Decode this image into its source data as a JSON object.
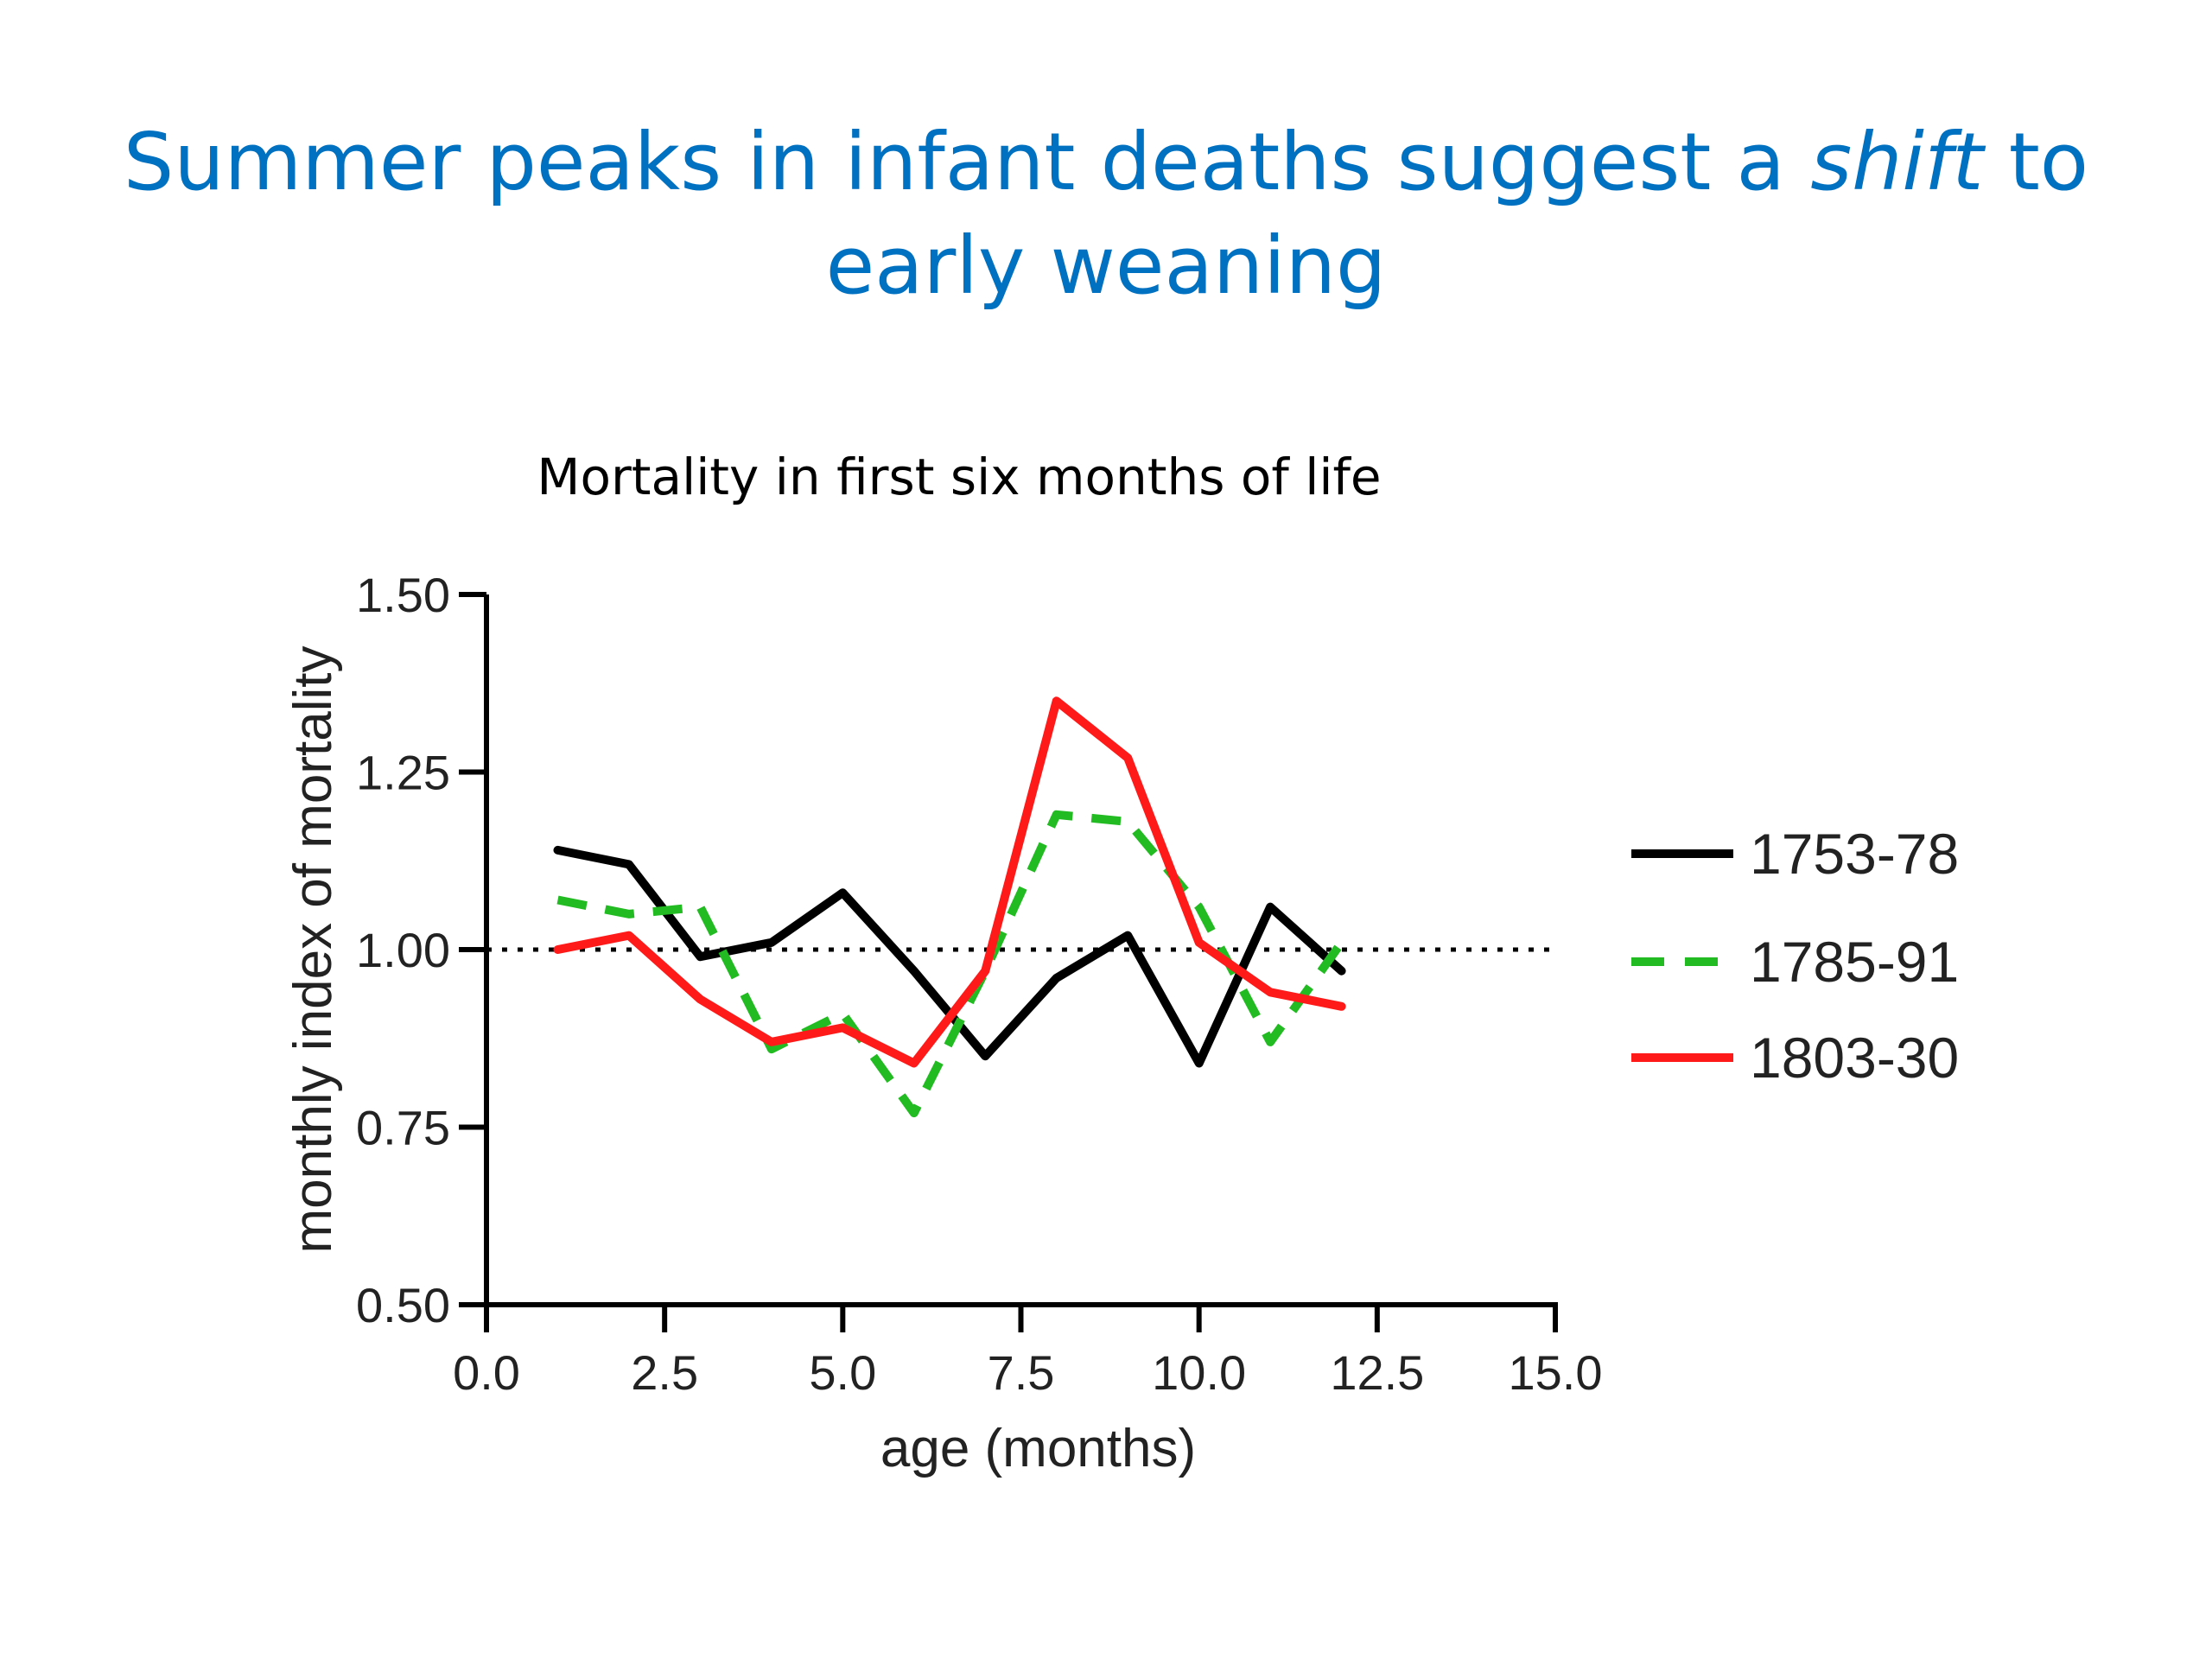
{
  "slide": {
    "title_before": "Summer peaks in infant deaths suggest a ",
    "title_emph": "shift",
    "title_after": " to early weaning"
  },
  "chart_data": {
    "type": "line",
    "title": "Mortality in first six months of life",
    "xlabel": "age (months)",
    "ylabel": "monthly index of mortality",
    "xlim": [
      0,
      15
    ],
    "ylim": [
      0.5,
      1.5
    ],
    "x_ticks": [
      "0.0",
      "2.5",
      "5.0",
      "7.5",
      "10.0",
      "12.5",
      "15.0"
    ],
    "y_ticks": [
      "0.50",
      "0.75",
      "1.00",
      "1.25",
      "1.50"
    ],
    "reference_line": 1.0,
    "legend_position": "right",
    "grid": false,
    "x": [
      1,
      2,
      3,
      4,
      5,
      6,
      7,
      8,
      9,
      10,
      11,
      12
    ],
    "series": [
      {
        "name": "1753-78",
        "color": "#000000",
        "dash": "solid",
        "values": [
          1.14,
          1.12,
          0.99,
          1.01,
          1.08,
          0.97,
          0.85,
          0.96,
          1.02,
          0.84,
          1.06,
          0.97
        ]
      },
      {
        "name": "1785-91",
        "color": "#22bb22",
        "dash": "dashed",
        "values": [
          1.07,
          1.05,
          1.06,
          0.86,
          0.91,
          0.77,
          0.97,
          1.19,
          1.18,
          1.06,
          0.87,
          1.01
        ]
      },
      {
        "name": "1803-30",
        "color": "#ff1a1a",
        "dash": "solid",
        "values": [
          1.0,
          1.02,
          0.93,
          0.87,
          0.89,
          0.84,
          0.97,
          1.35,
          1.27,
          1.01,
          0.94,
          0.92
        ]
      }
    ]
  }
}
